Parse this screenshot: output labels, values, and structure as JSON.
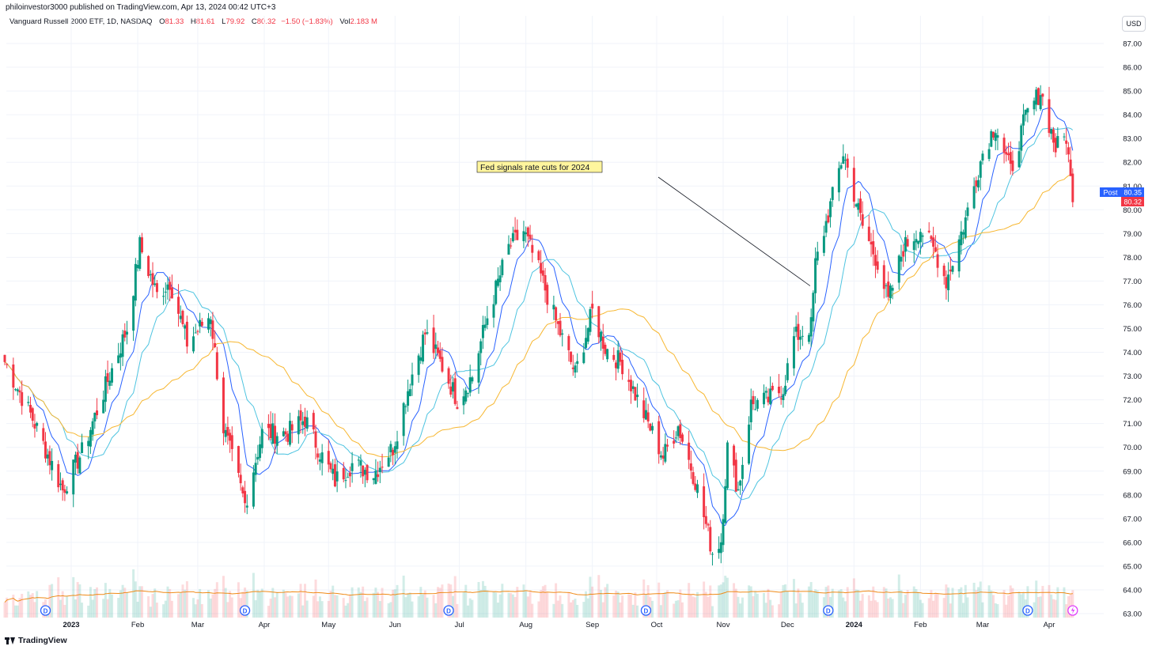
{
  "header": {
    "published_by": "philoinvestor3000 published on TradingView.com, Apr 13, 2024 00:42 UTC+3"
  },
  "legend": {
    "symbol": "Vanguard Russell 2000 ETF, 1D, NASDAQ",
    "open_label": "O",
    "open": "81.33",
    "high_label": "H",
    "high": "81.61",
    "low_label": "L",
    "low": "79.92",
    "close_label": "C",
    "close": "80.32",
    "change": "−1.50 (−1.83%)",
    "vol_label": "Vol",
    "vol": "2.183 M"
  },
  "currency_button": "USD",
  "footer": {
    "brand": "TradingView"
  },
  "colors": {
    "up": "#089981",
    "down": "#f23645",
    "ma_fast": "#2962ff",
    "ma_mid": "#4ec4e0",
    "ma_slow": "#f7b731",
    "vol_ma": "#ef8a17"
  },
  "chart_data": {
    "type": "candlestick",
    "y_axis": {
      "range": [
        63.0,
        87.0
      ],
      "ticks": [
        "87.00",
        "86.00",
        "85.00",
        "84.00",
        "83.00",
        "82.00",
        "81.00",
        "80.00",
        "79.00",
        "78.00",
        "77.00",
        "76.00",
        "75.00",
        "74.00",
        "73.00",
        "72.00",
        "71.00",
        "70.00",
        "69.00",
        "68.00",
        "67.00",
        "66.00",
        "65.00",
        "64.00",
        "63.00"
      ],
      "position": "right"
    },
    "x_axis": {
      "ticks": [
        {
          "label": "2023",
          "bold": true,
          "date": "2023-01-01"
        },
        {
          "label": "Feb",
          "bold": false,
          "date": "2023-02-01"
        },
        {
          "label": "Mar",
          "bold": false,
          "date": "2023-03-01"
        },
        {
          "label": "Apr",
          "bold": false,
          "date": "2023-04-01"
        },
        {
          "label": "May",
          "bold": false,
          "date": "2023-05-01"
        },
        {
          "label": "Jun",
          "bold": false,
          "date": "2023-06-01"
        },
        {
          "label": "Jul",
          "bold": false,
          "date": "2023-07-01"
        },
        {
          "label": "Aug",
          "bold": false,
          "date": "2023-08-01"
        },
        {
          "label": "Sep",
          "bold": false,
          "date": "2023-09-01"
        },
        {
          "label": "Oct",
          "bold": false,
          "date": "2023-10-01"
        },
        {
          "label": "Nov",
          "bold": false,
          "date": "2023-11-01"
        },
        {
          "label": "Dec",
          "bold": false,
          "date": "2023-12-01"
        },
        {
          "label": "2024",
          "bold": true,
          "date": "2024-01-01"
        },
        {
          "label": "Feb",
          "bold": false,
          "date": "2024-02-01"
        },
        {
          "label": "Mar",
          "bold": false,
          "date": "2024-03-01"
        },
        {
          "label": "Apr",
          "bold": false,
          "date": "2024-04-01"
        }
      ]
    },
    "price_key_points": [
      [
        "2022-12-01",
        73.6
      ],
      [
        "2022-12-14",
        71.2
      ],
      [
        "2022-12-28",
        68.2
      ],
      [
        "2023-01-06",
        69.8
      ],
      [
        "2023-01-18",
        72.8
      ],
      [
        "2023-01-27",
        75.0
      ],
      [
        "2023-02-02",
        78.5
      ],
      [
        "2023-02-10",
        76.4
      ],
      [
        "2023-02-16",
        77.0
      ],
      [
        "2023-02-24",
        74.4
      ],
      [
        "2023-03-07",
        75.6
      ],
      [
        "2023-03-13",
        70.8
      ],
      [
        "2023-03-20",
        68.6
      ],
      [
        "2023-03-23",
        67.6
      ],
      [
        "2023-03-31",
        70.6
      ],
      [
        "2023-04-12",
        70.6
      ],
      [
        "2023-04-20",
        71.2
      ],
      [
        "2023-04-28",
        69.6
      ],
      [
        "2023-05-04",
        68.6
      ],
      [
        "2023-05-12",
        69.3
      ],
      [
        "2023-05-22",
        68.9
      ],
      [
        "2023-05-31",
        70.0
      ],
      [
        "2023-06-08",
        72.8
      ],
      [
        "2023-06-15",
        74.8
      ],
      [
        "2023-06-22",
        73.6
      ],
      [
        "2023-06-30",
        72.0
      ],
      [
        "2023-07-07",
        73.0
      ],
      [
        "2023-07-14",
        75.5
      ],
      [
        "2023-07-24",
        78.4
      ],
      [
        "2023-07-31",
        79.1
      ],
      [
        "2023-08-08",
        77.2
      ],
      [
        "2023-08-15",
        75.3
      ],
      [
        "2023-08-24",
        73.1
      ],
      [
        "2023-09-01",
        75.7
      ],
      [
        "2023-09-07",
        74.2
      ],
      [
        "2023-09-15",
        73.5
      ],
      [
        "2023-09-22",
        72.0
      ],
      [
        "2023-09-29",
        70.6
      ],
      [
        "2023-10-04",
        69.6
      ],
      [
        "2023-10-11",
        70.9
      ],
      [
        "2023-10-19",
        68.6
      ],
      [
        "2023-10-27",
        65.6
      ],
      [
        "2023-10-31",
        66.1
      ],
      [
        "2023-11-03",
        70.0
      ],
      [
        "2023-11-08",
        68.2
      ],
      [
        "2023-11-14",
        71.8
      ],
      [
        "2023-11-22",
        72.0
      ],
      [
        "2023-11-29",
        72.5
      ],
      [
        "2023-12-04",
        74.6
      ],
      [
        "2023-12-12",
        75.1
      ],
      [
        "2023-12-14",
        77.7
      ],
      [
        "2023-12-20",
        79.8
      ],
      [
        "2023-12-27",
        82.4
      ],
      [
        "2024-01-05",
        79.3
      ],
      [
        "2024-01-12",
        77.8
      ],
      [
        "2024-01-17",
        76.1
      ],
      [
        "2024-01-24",
        78.4
      ],
      [
        "2024-02-01",
        79.2
      ],
      [
        "2024-02-08",
        78.2
      ],
      [
        "2024-02-13",
        77.0
      ],
      [
        "2024-02-22",
        79.6
      ],
      [
        "2024-03-01",
        82.4
      ],
      [
        "2024-03-07",
        83.6
      ],
      [
        "2024-03-14",
        81.6
      ],
      [
        "2024-03-21",
        83.9
      ],
      [
        "2024-03-28",
        85.0
      ],
      [
        "2024-04-04",
        82.6
      ],
      [
        "2024-04-09",
        83.1
      ],
      [
        "2024-04-12",
        80.3
      ]
    ],
    "moving_averages": [
      "fast",
      "mid",
      "slow"
    ],
    "volume_ma": true,
    "price_labels": [
      {
        "text": "Post",
        "value": "80.35",
        "color": "#2962ff"
      },
      {
        "text": "",
        "value": "80.32",
        "color": "#f23645"
      }
    ],
    "annotation": {
      "text": "Fed signals rate cuts for 2024",
      "date": "2023-12-13"
    },
    "dividend_marker": "D",
    "dividend_dates": [
      "2022-12-20",
      "2023-03-23",
      "2023-06-26",
      "2023-09-26",
      "2023-12-20",
      "2024-03-22"
    ],
    "event_marker_date": "2024-04-12",
    "grid": true
  }
}
